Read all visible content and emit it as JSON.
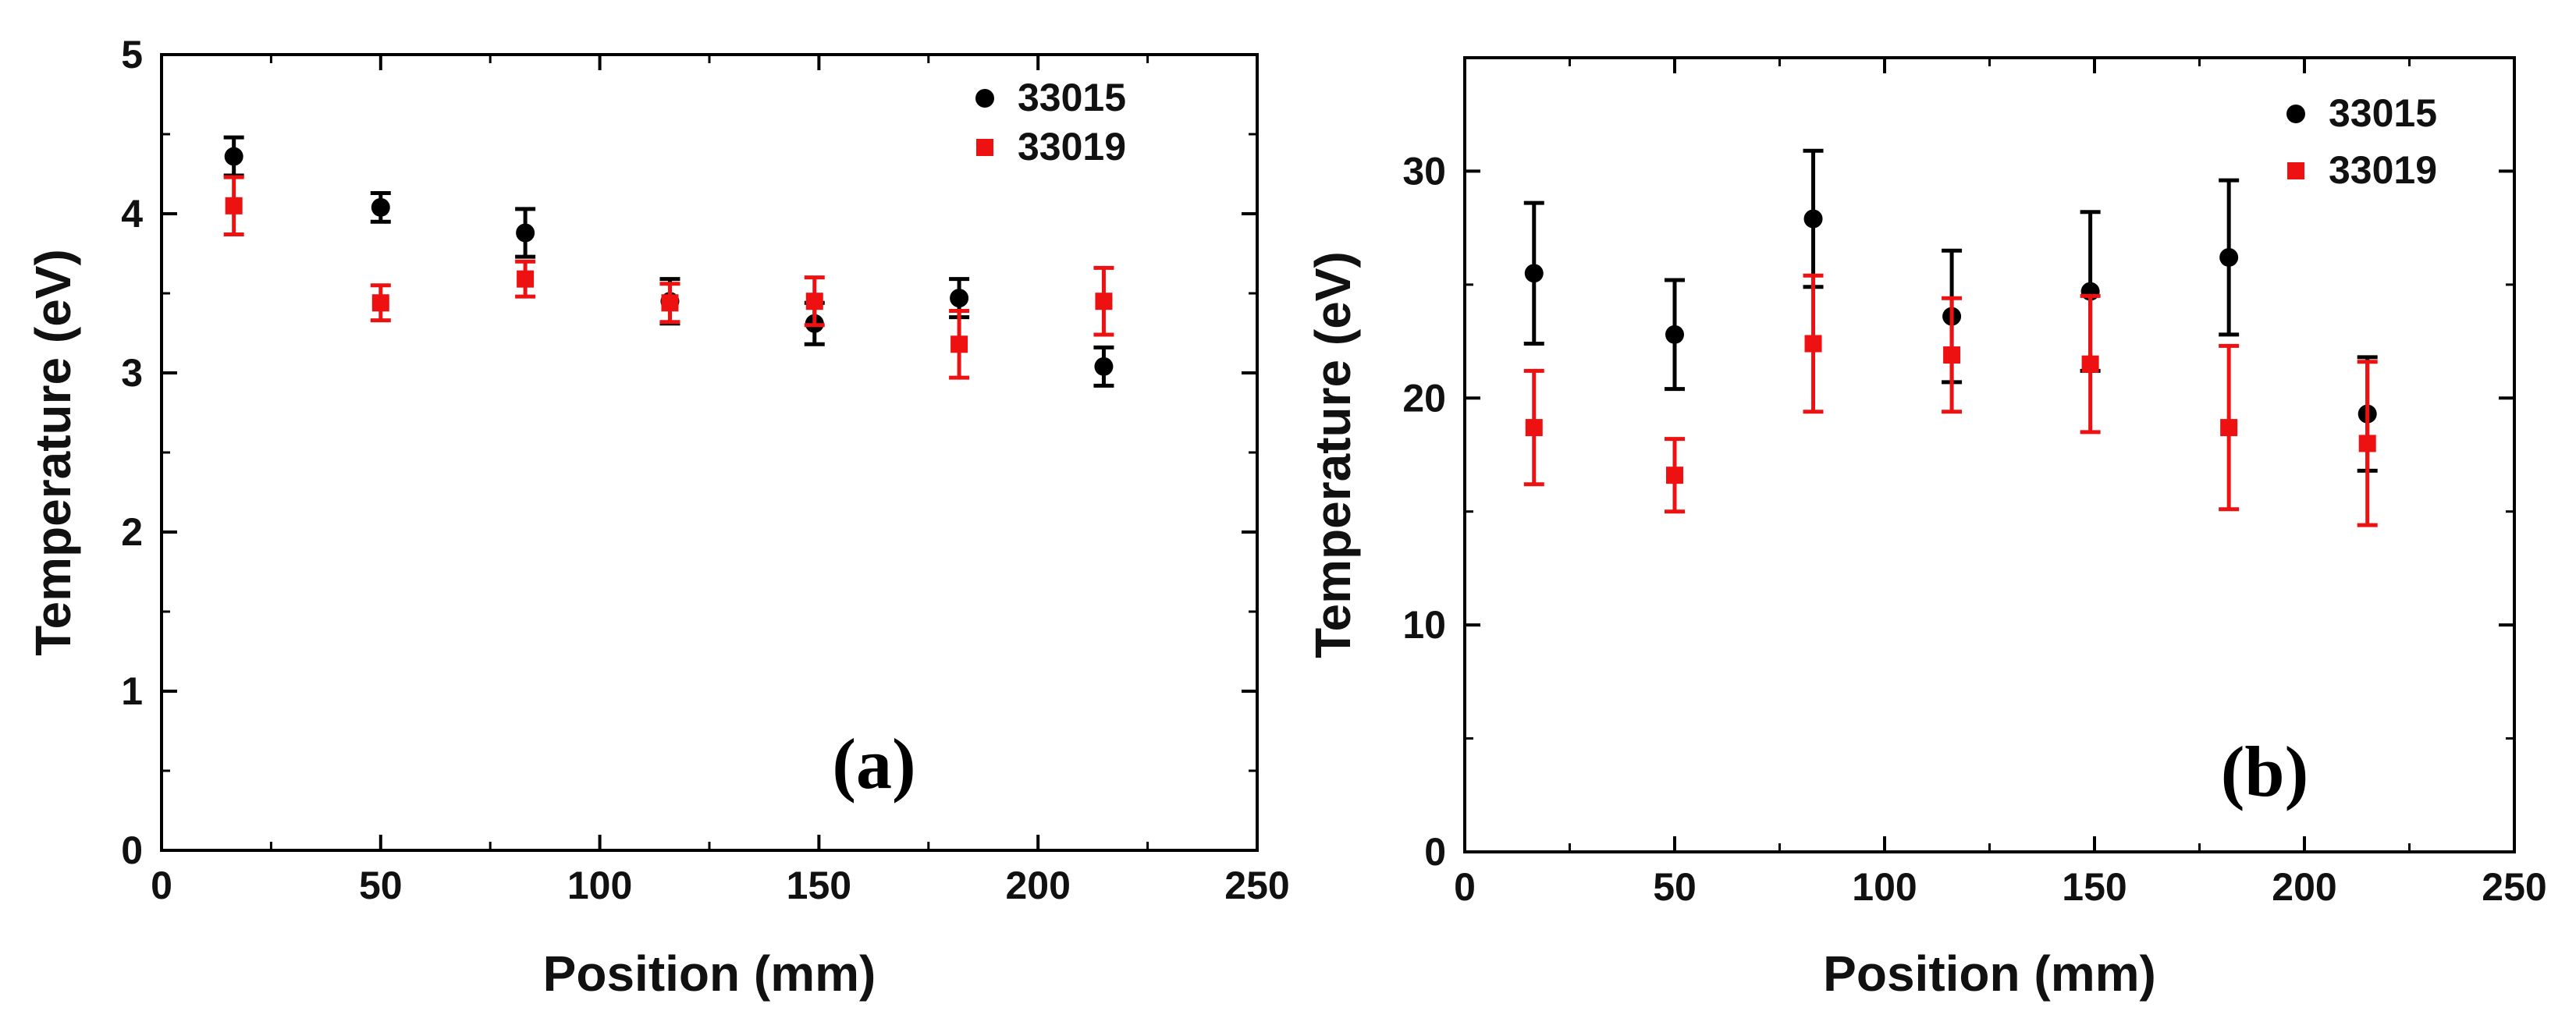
{
  "chart_data": [
    {
      "type": "scatter",
      "panel_label": "(a)",
      "xlabel": "Position (mm)",
      "ylabel": "Temperature (eV)",
      "xlim": [
        0,
        250
      ],
      "ylim": [
        0,
        5
      ],
      "xticks": [
        0,
        50,
        100,
        150,
        200,
        250
      ],
      "yticks": [
        0,
        1,
        2,
        3,
        4,
        5
      ],
      "xtick_labels": [
        "0",
        "50",
        "100",
        "150",
        "200",
        "250"
      ],
      "ytick_labels": [
        "0",
        "1",
        "2",
        "3",
        "4",
        "5"
      ],
      "legend_position": "top-right",
      "grid": false,
      "series": [
        {
          "name": "33015",
          "marker": "circle",
          "color": "#000000",
          "x": [
            16.5,
            50,
            83,
            116,
            149,
            182,
            215
          ],
          "y": [
            4.36,
            4.04,
            3.88,
            3.45,
            3.31,
            3.47,
            3.04
          ],
          "err": [
            0.12,
            0.09,
            0.15,
            0.14,
            0.13,
            0.12,
            0.12
          ]
        },
        {
          "name": "33019",
          "marker": "square",
          "color": "#ee1111",
          "x": [
            16.5,
            50,
            83,
            116,
            149,
            182,
            215
          ],
          "y": [
            4.05,
            3.44,
            3.59,
            3.44,
            3.45,
            3.18,
            3.45
          ],
          "err": [
            0.18,
            0.11,
            0.11,
            0.12,
            0.15,
            0.21,
            0.21
          ]
        }
      ]
    },
    {
      "type": "scatter",
      "panel_label": "(b)",
      "xlabel": "Position (mm)",
      "ylabel": "Temperature (eV)",
      "xlim": [
        0,
        250
      ],
      "ylim": [
        0,
        35
      ],
      "xticks": [
        0,
        50,
        100,
        150,
        200,
        250
      ],
      "yticks": [
        0,
        10,
        20,
        30
      ],
      "xtick_labels": [
        "0",
        "50",
        "100",
        "150",
        "200",
        "250"
      ],
      "ytick_labels": [
        "0",
        "10",
        "20",
        "30"
      ],
      "legend_position": "top-right",
      "grid": false,
      "series": [
        {
          "name": "33015",
          "marker": "circle",
          "color": "#000000",
          "x": [
            16.5,
            50,
            83,
            116,
            149,
            182,
            215
          ],
          "y": [
            25.5,
            22.8,
            27.9,
            23.6,
            24.7,
            26.2,
            19.3
          ],
          "err": [
            3.1,
            2.4,
            3.0,
            2.9,
            3.5,
            3.4,
            2.5
          ]
        },
        {
          "name": "33019",
          "marker": "square",
          "color": "#ee1111",
          "x": [
            16.5,
            50,
            83,
            116,
            149,
            182,
            215
          ],
          "y": [
            18.7,
            16.6,
            22.4,
            21.9,
            21.5,
            18.7,
            18.0
          ],
          "err": [
            2.5,
            1.6,
            3.0,
            2.5,
            3.0,
            3.6,
            3.6
          ]
        }
      ]
    }
  ]
}
